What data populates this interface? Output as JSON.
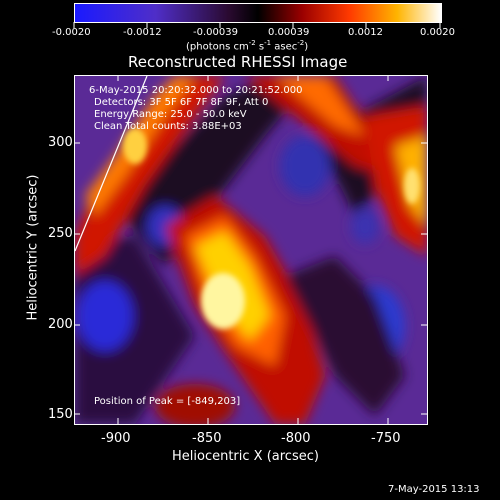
{
  "colorbar": {
    "tick_labels": [
      "-0.0020",
      "-0.0012",
      "-0.00039",
      "0.00039",
      "0.0012",
      "0.0020"
    ],
    "units_text": "(photons cm",
    "units_sup1": "-2",
    "units_mid": " s",
    "units_sup2": "-1",
    "units_end": " asec",
    "units_sup3": "-2",
    "units_close": ")"
  },
  "plot": {
    "title": "Reconstructed RHESSI Image",
    "xlabel": "Heliocentric X (arcsec)",
    "ylabel": "Heliocentric Y (arcsec)",
    "x_ticks": [
      "-900",
      "-850",
      "-800",
      "-750"
    ],
    "y_ticks": [
      "300",
      "250",
      "200",
      "150"
    ],
    "annotations": [
      "6-May-2015 20:20:32.000 to 20:21:52.000",
      "Detectors: 3F 5F 6F 7F 8F 9F, Att 0",
      "Energy Range: 25.0 - 50.0 keV",
      "Clean     Total counts: 3.88E+03"
    ],
    "peak_text": "Position of Peak = [-849,203]"
  },
  "footer": {
    "timestamp": "7-May-2015 13:13"
  },
  "colors": {
    "low": "#1a1aff",
    "mid": "#000000",
    "purple": "#5a2a96",
    "red": "#c01000",
    "orange": "#ff8a00",
    "yellow": "#ffff80",
    "white": "#ffffff"
  }
}
